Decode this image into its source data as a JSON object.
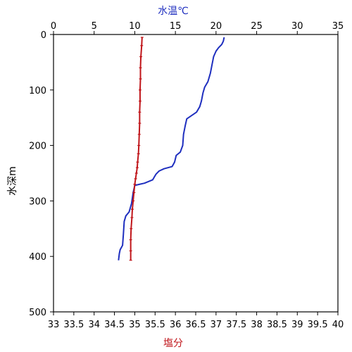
{
  "chart_data": {
    "type": "line",
    "top_axis": {
      "label": "水温℃",
      "color": "#1f2fbf",
      "range": [
        0,
        35
      ],
      "ticks": [
        "0",
        "5",
        "10",
        "15",
        "20",
        "25",
        "30",
        "35"
      ]
    },
    "bottom_axis": {
      "label": "塩分",
      "color": "#c0161b",
      "range": [
        33,
        40
      ],
      "ticks": [
        "33",
        "33.5",
        "34",
        "34.5",
        "35",
        "35.5",
        "36",
        "36.5",
        "37",
        "37.5",
        "38",
        "38.5",
        "39",
        "39.5",
        "40"
      ]
    },
    "y_axis": {
      "label": "水深m",
      "range": [
        0,
        500
      ],
      "inverted": true,
      "ticks": [
        "0",
        "100",
        "200",
        "300",
        "400",
        "500"
      ]
    },
    "grid": false,
    "series": [
      {
        "axis": "top",
        "color": "#1f2fbf",
        "points": [
          [
            21.0,
            5
          ],
          [
            20.9,
            12
          ],
          [
            20.7,
            18
          ],
          [
            20.3,
            24
          ],
          [
            20.0,
            30
          ],
          [
            19.7,
            40
          ],
          [
            19.5,
            55
          ],
          [
            19.3,
            70
          ],
          [
            19.0,
            85
          ],
          [
            18.6,
            95
          ],
          [
            18.4,
            105
          ],
          [
            18.2,
            120
          ],
          [
            18.0,
            130
          ],
          [
            17.6,
            140
          ],
          [
            17.0,
            146
          ],
          [
            16.4,
            152
          ],
          [
            16.2,
            165
          ],
          [
            16.0,
            180
          ],
          [
            15.9,
            200
          ],
          [
            15.6,
            212
          ],
          [
            15.1,
            218
          ],
          [
            14.9,
            230
          ],
          [
            14.6,
            238
          ],
          [
            13.6,
            242
          ],
          [
            13.0,
            246
          ],
          [
            12.6,
            252
          ],
          [
            12.2,
            262
          ],
          [
            11.2,
            268
          ],
          [
            10.6,
            270
          ],
          [
            10.0,
            272
          ],
          [
            9.8,
            285
          ],
          [
            9.6,
            305
          ],
          [
            9.3,
            320
          ],
          [
            8.9,
            327
          ],
          [
            8.7,
            337
          ],
          [
            8.6,
            360
          ],
          [
            8.5,
            380
          ],
          [
            8.2,
            388
          ],
          [
            8.1,
            395
          ],
          [
            8.0,
            407
          ]
        ]
      },
      {
        "axis": "bottom",
        "color": "#c0161b",
        "points": [
          [
            35.18,
            5
          ],
          [
            35.17,
            20
          ],
          [
            35.15,
            40
          ],
          [
            35.14,
            60
          ],
          [
            35.14,
            80
          ],
          [
            35.13,
            100
          ],
          [
            35.13,
            120
          ],
          [
            35.12,
            140
          ],
          [
            35.12,
            160
          ],
          [
            35.11,
            180
          ],
          [
            35.1,
            200
          ],
          [
            35.09,
            215
          ],
          [
            35.07,
            230
          ],
          [
            35.06,
            240
          ],
          [
            35.04,
            250
          ],
          [
            35.02,
            260
          ],
          [
            35.0,
            270
          ],
          [
            34.98,
            285
          ],
          [
            34.96,
            300
          ],
          [
            34.94,
            315
          ],
          [
            34.93,
            330
          ],
          [
            34.91,
            350
          ],
          [
            34.9,
            370
          ],
          [
            34.9,
            390
          ],
          [
            34.9,
            407
          ]
        ]
      }
    ]
  }
}
